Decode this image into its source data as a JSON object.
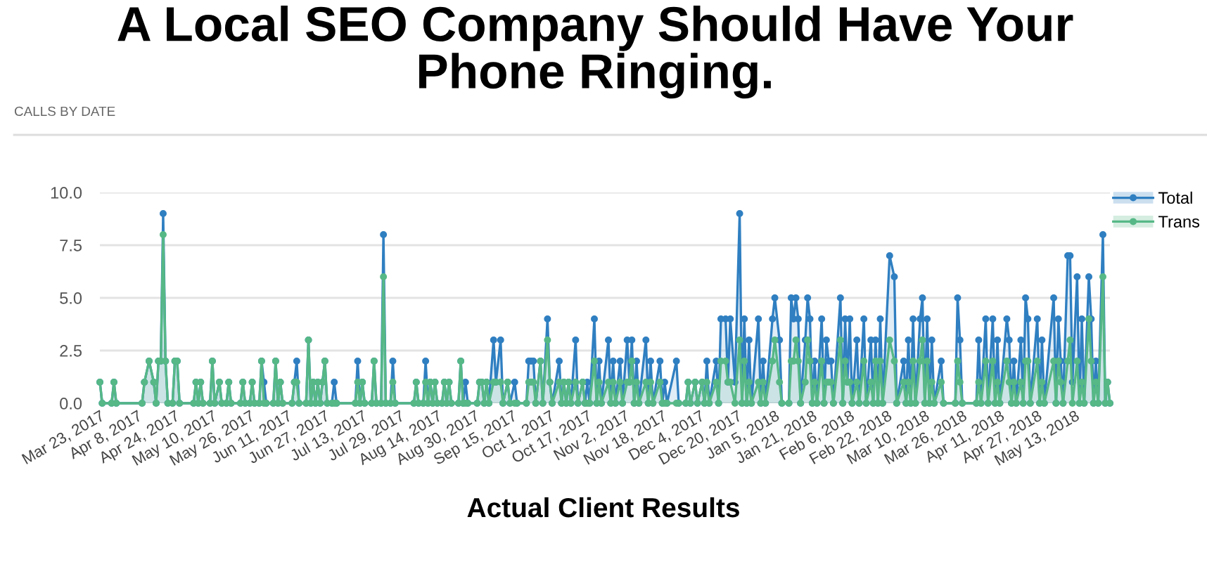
{
  "chart_data": {
    "type": "area",
    "title": "A Local SEO Company Should Have Your Phone Ringing.",
    "subtitle": "CALLS BY DATE",
    "annotations": [
      "Actual Client Results"
    ],
    "x": [
      "2017-03-23",
      "2017-03-24",
      "2017-03-28",
      "2017-03-29",
      "2017-03-30",
      "2017-04-10",
      "2017-04-11",
      "2017-04-13",
      "2017-04-15",
      "2017-04-16",
      "2017-04-17",
      "2017-04-18",
      "2017-04-19",
      "2017-04-20",
      "2017-04-21",
      "2017-04-23",
      "2017-04-24",
      "2017-04-25",
      "2017-04-26",
      "2017-05-02",
      "2017-05-03",
      "2017-05-04",
      "2017-05-05",
      "2017-05-06",
      "2017-05-09",
      "2017-05-10",
      "2017-05-11",
      "2017-05-13",
      "2017-05-14",
      "2017-05-16",
      "2017-05-17",
      "2017-05-18",
      "2017-05-22",
      "2017-05-23",
      "2017-05-24",
      "2017-05-26",
      "2017-05-27",
      "2017-05-28",
      "2017-05-30",
      "2017-05-31",
      "2017-06-01",
      "2017-06-02",
      "2017-06-05",
      "2017-06-06",
      "2017-06-07",
      "2017-06-08",
      "2017-06-09",
      "2017-06-13",
      "2017-06-14",
      "2017-06-15",
      "2017-06-16",
      "2017-06-19",
      "2017-06-20",
      "2017-06-21",
      "2017-06-22",
      "2017-06-23",
      "2017-06-24",
      "2017-06-25",
      "2017-06-26",
      "2017-06-27",
      "2017-06-28",
      "2017-06-30",
      "2017-07-01",
      "2017-07-02",
      "2017-07-10",
      "2017-07-11",
      "2017-07-12",
      "2017-07-13",
      "2017-07-14",
      "2017-07-17",
      "2017-07-18",
      "2017-07-19",
      "2017-07-21",
      "2017-07-22",
      "2017-07-23",
      "2017-07-25",
      "2017-07-26",
      "2017-07-27",
      "2017-08-04",
      "2017-08-05",
      "2017-08-06",
      "2017-08-08",
      "2017-08-09",
      "2017-08-10",
      "2017-08-11",
      "2017-08-12",
      "2017-08-13",
      "2017-08-14",
      "2017-08-16",
      "2017-08-17",
      "2017-08-18",
      "2017-08-19",
      "2017-08-20",
      "2017-08-23",
      "2017-08-24",
      "2017-08-25",
      "2017-08-26",
      "2017-08-27",
      "2017-08-31",
      "2017-09-01",
      "2017-09-02",
      "2017-09-03",
      "2017-09-04",
      "2017-09-05",
      "2017-09-07",
      "2017-09-08",
      "2017-09-10",
      "2017-09-11",
      "2017-09-13",
      "2017-09-14",
      "2017-09-16",
      "2017-09-17",
      "2017-09-21",
      "2017-09-22",
      "2017-09-23",
      "2017-09-24",
      "2017-09-25",
      "2017-09-27",
      "2017-09-28",
      "2017-09-30",
      "2017-10-01",
      "2017-10-02",
      "2017-10-05",
      "2017-10-06",
      "2017-10-07",
      "2017-10-08",
      "2017-10-09",
      "2017-10-10",
      "2017-10-12",
      "2017-10-13",
      "2017-10-15",
      "2017-10-16",
      "2017-10-17",
      "2017-10-18",
      "2017-10-20",
      "2017-10-21",
      "2017-10-22",
      "2017-10-23",
      "2017-10-26",
      "2017-10-27",
      "2017-10-28",
      "2017-10-29",
      "2017-10-31",
      "2017-11-01",
      "2017-11-03",
      "2017-11-04",
      "2017-11-05",
      "2017-11-06",
      "2017-11-07",
      "2017-11-08",
      "2017-11-11",
      "2017-11-12",
      "2017-11-13",
      "2017-11-14",
      "2017-11-17",
      "2017-11-18",
      "2017-11-19",
      "2017-11-20",
      "2017-11-24",
      "2017-11-25",
      "2017-11-28",
      "2017-11-29",
      "2017-11-30",
      "2017-12-02",
      "2017-12-03",
      "2017-12-05",
      "2017-12-06",
      "2017-12-07",
      "2017-12-08",
      "2017-12-11",
      "2017-12-12",
      "2017-12-13",
      "2017-12-15",
      "2017-12-16",
      "2017-12-17",
      "2017-12-19",
      "2017-12-21",
      "2017-12-22",
      "2017-12-23",
      "2017-12-24",
      "2017-12-25",
      "2017-12-26",
      "2017-12-29",
      "2017-12-30",
      "2017-12-31",
      "2018-01-01",
      "2018-01-04",
      "2018-01-05",
      "2018-01-07",
      "2018-01-08",
      "2018-01-11",
      "2018-01-12",
      "2018-01-13",
      "2018-01-14",
      "2018-01-15",
      "2018-01-16",
      "2018-01-18",
      "2018-01-19",
      "2018-01-20",
      "2018-01-21",
      "2018-01-22",
      "2018-01-23",
      "2018-01-25",
      "2018-01-26",
      "2018-01-27",
      "2018-01-28",
      "2018-01-29",
      "2018-01-30",
      "2018-02-02",
      "2018-02-03",
      "2018-02-04",
      "2018-02-05",
      "2018-02-06",
      "2018-02-07",
      "2018-02-09",
      "2018-02-10",
      "2018-02-12",
      "2018-02-13",
      "2018-02-15",
      "2018-02-16",
      "2018-02-17",
      "2018-02-18",
      "2018-02-19",
      "2018-02-20",
      "2018-02-23",
      "2018-02-25",
      "2018-02-26",
      "2018-03-01",
      "2018-03-02",
      "2018-03-03",
      "2018-03-04",
      "2018-03-05",
      "2018-03-06",
      "2018-03-08",
      "2018-03-09",
      "2018-03-10",
      "2018-03-11",
      "2018-03-12",
      "2018-03-13",
      "2018-03-14",
      "2018-03-17",
      "2018-03-18",
      "2018-03-23",
      "2018-03-24",
      "2018-03-25",
      "2018-03-26",
      "2018-04-01",
      "2018-04-02",
      "2018-04-03",
      "2018-04-05",
      "2018-04-06",
      "2018-04-08",
      "2018-04-09",
      "2018-04-10",
      "2018-04-11",
      "2018-04-14",
      "2018-04-15",
      "2018-04-16",
      "2018-04-17",
      "2018-04-18",
      "2018-04-20",
      "2018-04-21",
      "2018-04-22",
      "2018-04-23",
      "2018-04-24",
      "2018-04-27",
      "2018-04-28",
      "2018-04-29",
      "2018-04-30",
      "2018-05-04",
      "2018-05-05",
      "2018-05-06",
      "2018-05-07",
      "2018-05-08",
      "2018-05-10",
      "2018-05-11",
      "2018-05-12",
      "2018-05-14",
      "2018-05-15",
      "2018-05-16",
      "2018-05-17",
      "2018-05-19",
      "2018-05-20",
      "2018-05-21",
      "2018-05-22",
      "2018-05-23",
      "2018-05-25",
      "2018-05-26",
      "2018-05-27",
      "2018-05-28"
    ],
    "series": [
      {
        "name": "Total",
        "color": "#2f7fc1",
        "values": [
          1,
          0,
          0,
          1,
          0,
          0,
          1,
          2,
          1,
          0,
          2,
          2,
          9,
          2,
          0,
          0,
          2,
          2,
          0,
          0,
          1,
          0,
          1,
          0,
          0,
          2,
          0,
          1,
          0,
          0,
          1,
          0,
          0,
          1,
          0,
          0,
          1,
          0,
          0,
          2,
          1,
          0,
          0,
          2,
          0,
          1,
          0,
          0,
          1,
          2,
          0,
          0,
          3,
          0,
          1,
          0,
          1,
          0,
          1,
          2,
          0,
          0,
          1,
          0,
          0,
          2,
          0,
          1,
          0,
          0,
          2,
          0,
          0,
          8,
          0,
          0,
          2,
          0,
          0,
          1,
          0,
          0,
          2,
          0,
          1,
          0,
          1,
          0,
          0,
          1,
          0,
          1,
          0,
          0,
          2,
          0,
          1,
          0,
          0,
          1,
          1,
          0,
          1,
          0,
          3,
          1,
          3,
          0,
          1,
          0,
          1,
          0,
          0,
          2,
          2,
          2,
          0,
          2,
          0,
          4,
          1,
          0,
          2,
          0,
          1,
          0,
          1,
          0,
          3,
          0,
          1,
          0,
          1,
          0,
          4,
          0,
          2,
          0,
          3,
          0,
          2,
          0,
          2,
          0,
          3,
          1,
          3,
          0,
          2,
          0,
          3,
          0,
          2,
          0,
          2,
          0,
          1,
          0,
          2,
          0,
          0,
          1,
          0,
          1,
          0,
          1,
          0,
          2,
          0,
          2,
          0,
          4,
          4,
          1,
          4,
          1,
          9,
          0,
          4,
          0,
          3,
          0,
          4,
          0,
          2,
          0,
          4,
          5,
          3,
          0,
          0,
          5,
          4,
          5,
          4,
          0,
          3,
          5,
          4,
          0,
          2,
          0,
          4,
          0,
          3,
          2,
          2,
          0,
          5,
          0,
          4,
          1,
          4,
          0,
          3,
          0,
          4,
          0,
          3,
          0,
          3,
          0,
          4,
          0,
          7,
          6,
          0,
          2,
          0,
          3,
          0,
          4,
          0,
          4,
          5,
          0,
          4,
          0,
          3,
          0,
          2,
          0,
          0,
          5,
          3,
          0,
          0,
          3,
          0,
          4,
          0,
          4,
          0,
          3,
          0,
          4,
          3,
          0,
          2,
          0,
          3,
          0,
          5,
          4,
          0,
          4,
          0,
          3,
          0,
          5,
          0,
          4,
          2,
          0,
          7,
          7,
          1,
          6,
          0,
          4,
          0,
          6,
          4,
          0,
          2,
          0,
          8,
          0,
          1,
          0
        ]
      },
      {
        "name": "Trans",
        "color": "#56b886",
        "values": [
          1,
          0,
          0,
          1,
          0,
          0,
          1,
          2,
          1,
          0,
          2,
          2,
          8,
          2,
          0,
          0,
          2,
          2,
          0,
          0,
          1,
          0,
          1,
          0,
          0,
          2,
          0,
          1,
          0,
          0,
          1,
          0,
          0,
          1,
          0,
          0,
          1,
          0,
          0,
          2,
          0,
          0,
          0,
          2,
          0,
          1,
          0,
          0,
          1,
          1,
          0,
          0,
          3,
          0,
          1,
          0,
          1,
          0,
          1,
          2,
          0,
          0,
          0,
          0,
          0,
          1,
          0,
          1,
          0,
          0,
          2,
          0,
          0,
          6,
          0,
          0,
          1,
          0,
          0,
          1,
          0,
          0,
          1,
          0,
          1,
          0,
          1,
          0,
          0,
          1,
          0,
          1,
          0,
          0,
          2,
          0,
          0,
          0,
          0,
          1,
          1,
          0,
          1,
          0,
          1,
          1,
          1,
          0,
          1,
          0,
          0,
          0,
          0,
          1,
          1,
          1,
          0,
          2,
          0,
          3,
          1,
          0,
          1,
          0,
          1,
          0,
          1,
          0,
          1,
          0,
          1,
          0,
          0,
          0,
          2,
          0,
          1,
          0,
          1,
          0,
          1,
          0,
          1,
          0,
          1,
          1,
          2,
          0,
          1,
          0,
          1,
          0,
          1,
          0,
          1,
          0,
          0,
          0,
          0,
          0,
          0,
          1,
          0,
          1,
          0,
          1,
          0,
          1,
          0,
          1,
          0,
          2,
          2,
          1,
          1,
          0,
          3,
          0,
          2,
          0,
          1,
          0,
          1,
          0,
          1,
          0,
          2,
          3,
          1,
          0,
          0,
          2,
          2,
          3,
          2,
          0,
          1,
          3,
          2,
          0,
          1,
          0,
          2,
          0,
          1,
          1,
          1,
          0,
          3,
          0,
          2,
          1,
          1,
          0,
          1,
          0,
          2,
          0,
          1,
          0,
          2,
          0,
          2,
          0,
          3,
          2,
          0,
          1,
          0,
          1,
          0,
          2,
          0,
          2,
          3,
          0,
          2,
          0,
          1,
          0,
          1,
          0,
          0,
          2,
          1,
          0,
          0,
          1,
          0,
          2,
          0,
          2,
          0,
          1,
          0,
          2,
          1,
          0,
          1,
          0,
          1,
          0,
          2,
          2,
          0,
          2,
          0,
          1,
          0,
          2,
          0,
          2,
          1,
          0,
          2,
          3,
          0,
          2,
          0,
          1,
          0,
          4,
          2,
          0,
          1,
          0,
          6,
          0,
          1,
          0
        ]
      }
    ],
    "xlim": [
      "2017-03-23",
      "2018-05-28"
    ],
    "xticks": [
      {
        "value": "2017-03-23",
        "label": "Mar 23, 2017"
      },
      {
        "value": "2017-04-08",
        "label": "Apr 8, 2017"
      },
      {
        "value": "2017-04-24",
        "label": "Apr 24, 2017"
      },
      {
        "value": "2017-05-10",
        "label": "May 10, 2017"
      },
      {
        "value": "2017-05-26",
        "label": "May 26, 2017"
      },
      {
        "value": "2017-06-11",
        "label": "Jun 11, 2017"
      },
      {
        "value": "2017-06-27",
        "label": "Jun 27, 2017"
      },
      {
        "value": "2017-07-13",
        "label": "Jul 13, 2017"
      },
      {
        "value": "2017-07-29",
        "label": "Jul 29, 2017"
      },
      {
        "value": "2017-08-14",
        "label": "Aug 14, 2017"
      },
      {
        "value": "2017-08-30",
        "label": "Aug 30, 2017"
      },
      {
        "value": "2017-09-15",
        "label": "Sep 15, 2017"
      },
      {
        "value": "2017-10-01",
        "label": "Oct 1, 2017"
      },
      {
        "value": "2017-10-17",
        "label": "Oct 17, 2017"
      },
      {
        "value": "2017-11-02",
        "label": "Nov 2, 2017"
      },
      {
        "value": "2017-11-18",
        "label": "Nov 18, 2017"
      },
      {
        "value": "2017-12-04",
        "label": "Dec 4, 2017"
      },
      {
        "value": "2017-12-20",
        "label": "Dec 20, 2017"
      },
      {
        "value": "2018-01-05",
        "label": "Jan 5, 2018"
      },
      {
        "value": "2018-01-21",
        "label": "Jan 21, 2018"
      },
      {
        "value": "2018-02-06",
        "label": "Feb 6, 2018"
      },
      {
        "value": "2018-02-22",
        "label": "Feb 22, 2018"
      },
      {
        "value": "2018-03-10",
        "label": "Mar 10, 2018"
      },
      {
        "value": "2018-03-26",
        "label": "Mar 26, 2018"
      },
      {
        "value": "2018-04-11",
        "label": "Apr 11, 2018"
      },
      {
        "value": "2018-04-27",
        "label": "Apr 27, 2018"
      },
      {
        "value": "2018-05-13",
        "label": "May 13, 2018"
      }
    ],
    "ylim": [
      0,
      10
    ],
    "yticks": [
      {
        "value": 0,
        "label": "0.0"
      },
      2.5,
      {
        "value": 5,
        "label": "5.0"
      },
      7.5,
      {
        "value": 10,
        "label": "10.0"
      }
    ],
    "grid": "y",
    "legend": "top right",
    "marker": "circle"
  }
}
